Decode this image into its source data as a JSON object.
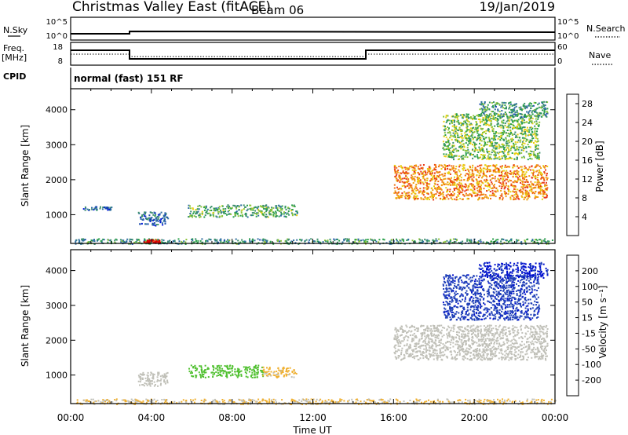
{
  "header": {
    "title": "Christmas Valley East (fitACF)",
    "beam": "Beam 06",
    "date": "19/Jan/2019"
  },
  "top_panels": {
    "nsky_label": "N.Sky",
    "nsky_ticks": [
      "10^5",
      "10^0"
    ],
    "nsky_right_ticks": [
      "10^5",
      "10^0"
    ],
    "nsearch_label": "N.Search",
    "freq_label_1": "Freq.",
    "freq_label_2": "[MHz]",
    "freq_ticks": [
      "18",
      "8"
    ],
    "nave_ticks": [
      "60",
      "0"
    ],
    "nave_label": "Nave",
    "cpid_label": "CPID",
    "cpid_text": "normal (fast) 151 RF"
  },
  "chart_data": [
    {
      "type": "heatmap",
      "name": "power",
      "xlabel": "",
      "ylabel": "Slant Range [km]",
      "x_ticks": [
        "00:00",
        "04:00",
        "08:00",
        "12:00",
        "16:00",
        "20:00",
        "00:00"
      ],
      "xlim_hours": [
        0,
        24
      ],
      "y_ticks": [
        1000,
        2000,
        3000,
        4000
      ],
      "ylim_km": [
        180,
        4600
      ],
      "colorbar": {
        "label": "Power [dB]",
        "ticks": [
          "4",
          "8",
          "12",
          "16",
          "20",
          "24",
          "28"
        ],
        "range": [
          0,
          30
        ],
        "colors": [
          "#0018d8",
          "#1f4fb0",
          "#2e6fa0",
          "#3c8f6c",
          "#2aa04a",
          "#8cc43a",
          "#e8d010",
          "#f0a010",
          "#f07010",
          "#e83818",
          "#d80000"
        ]
      },
      "regions": [
        {
          "t_start": 0.2,
          "t_end": 24.0,
          "r_start": 180,
          "r_end": 330,
          "power_db": 10
        },
        {
          "t_start": 3.6,
          "t_end": 4.4,
          "r_start": 200,
          "r_end": 300,
          "power_db": 30
        },
        {
          "t_start": 0.6,
          "t_end": 2.0,
          "r_start": 1150,
          "r_end": 1250,
          "power_db": 6
        },
        {
          "t_start": 3.3,
          "t_end": 4.8,
          "r_start": 700,
          "r_end": 1100,
          "power_db": 6
        },
        {
          "t_start": 5.8,
          "t_end": 11.2,
          "r_start": 950,
          "r_end": 1300,
          "power_db": 12
        },
        {
          "t_start": 16.0,
          "t_end": 23.6,
          "r_start": 1450,
          "r_end": 2450,
          "power_db": 22
        },
        {
          "t_start": 18.4,
          "t_end": 23.2,
          "r_start": 2600,
          "r_end": 3900,
          "power_db": 14
        },
        {
          "t_start": 20.2,
          "t_end": 23.6,
          "r_start": 3800,
          "r_end": 4250,
          "power_db": 10
        }
      ]
    },
    {
      "type": "heatmap",
      "name": "velocity",
      "xlabel": "Time UT",
      "ylabel": "Slant Range [km]",
      "x_ticks": [
        "00:00",
        "04:00",
        "08:00",
        "12:00",
        "16:00",
        "20:00",
        "00:00"
      ],
      "xlim_hours": [
        0,
        24
      ],
      "y_ticks": [
        1000,
        2000,
        3000,
        4000
      ],
      "ylim_km": [
        180,
        4600
      ],
      "colorbar": {
        "label": "Velocity [m s⁻¹]",
        "ticks": [
          "200",
          "100",
          "50",
          "15",
          "-15",
          "-50",
          "-100",
          "-200"
        ],
        "range": [
          -250,
          250
        ],
        "colors": [
          "#0010d0",
          "#2040b8",
          "#30a040",
          "#50c030",
          "#c0c0b8",
          "#f0b030",
          "#f08000",
          "#f04000",
          "#e00000"
        ]
      },
      "regions": [
        {
          "t_start": 0.2,
          "t_end": 24.0,
          "r_start": 180,
          "r_end": 330,
          "velocity": -30
        },
        {
          "t_start": 3.3,
          "t_end": 4.8,
          "r_start": 700,
          "r_end": 1100,
          "velocity": 5
        },
        {
          "t_start": 5.8,
          "t_end": 9.5,
          "r_start": 950,
          "r_end": 1300,
          "velocity": 60
        },
        {
          "t_start": 9.5,
          "t_end": 11.2,
          "r_start": 950,
          "r_end": 1250,
          "velocity": -40
        },
        {
          "t_start": 16.0,
          "t_end": 23.6,
          "r_start": 1450,
          "r_end": 2450,
          "velocity": 0
        },
        {
          "t_start": 18.4,
          "t_end": 23.2,
          "r_start": 2600,
          "r_end": 3900,
          "velocity": 180
        },
        {
          "t_start": 20.2,
          "t_end": 23.6,
          "r_start": 3800,
          "r_end": 4250,
          "velocity": 200
        }
      ]
    }
  ]
}
